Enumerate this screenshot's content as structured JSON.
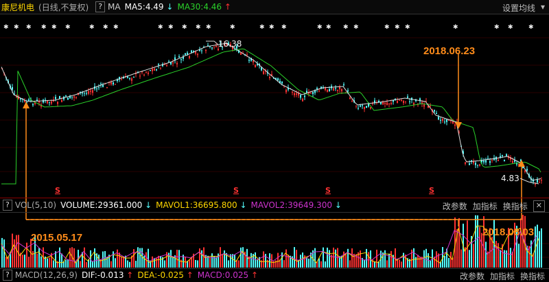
{
  "header": {
    "stock_name": "康尼机电",
    "mode": "(日线,不复权)",
    "help": "?",
    "ma_label": "MA",
    "ma5": "MA5:4.49",
    "ma5_arrow": "↓",
    "ma30": "MA30:4.46",
    "ma30_arrow": "↑",
    "settings_label": "设置均线",
    "settings_arrow": "▾"
  },
  "volume_bar": {
    "help": "?",
    "name": "VOL(5,10)",
    "volume": "VOLUME:29361.000",
    "volume_arrow": "↓",
    "mavol1": "MAVOL1:36695.800",
    "mavol1_arrow": "↓",
    "mavol2": "MAVOL2:39649.300",
    "mavol2_arrow": "↓",
    "btn_params": "改参数",
    "btn_add": "加指标",
    "btn_switch": "换指标",
    "btn_close": "✕"
  },
  "macd_bar": {
    "help": "?",
    "name": "MACD(12,26,9)",
    "dif": "DIF:-0.013",
    "dif_arrow": "↑",
    "dea": "DEA:-0.025",
    "dea_arrow": "↑",
    "macd": "MACD:0.025",
    "macd_arrow": "↑",
    "btn_params": "改参数",
    "btn_add": "加指标",
    "btn_switch": "换指标"
  },
  "annotations": {
    "high_price": "16.38",
    "low_price": "4.83",
    "date_1": "2015.05.17",
    "date_2": "2018.06.23",
    "date_3": "2018.08.03",
    "dividend_marker": "S"
  },
  "colors": {
    "up": "#ff3232",
    "down": "#54ffff",
    "ma30": "#2ad12a",
    "ma5": "#ffffff",
    "annotation": "#ff8c1a",
    "mavol1": "#ffd700",
    "mavol2": "#cc33cc"
  }
}
